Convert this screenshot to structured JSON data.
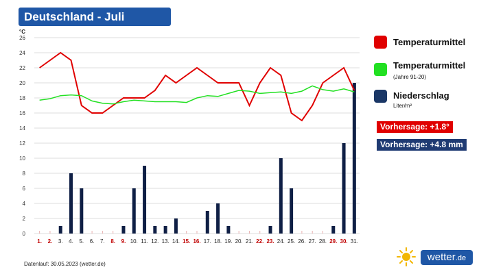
{
  "title": "Deutschland - Juli",
  "legend": [
    {
      "label": "Temperaturmittel",
      "sub": "",
      "color": "#e00000"
    },
    {
      "label": "Temperaturmittel",
      "sub": "(Jahre 91-20)",
      "color": "#22e022"
    },
    {
      "label": "Niederschlag",
      "sub": "Liter/m²",
      "color": "#1a3766"
    }
  ],
  "forecast": [
    {
      "text": "Vorhersage: +1.8°",
      "color": "#e00000"
    },
    {
      "text": "Vorhersage: +4.8 mm",
      "color": "#1f3b73"
    }
  ],
  "footer": "Datenlauf: 30.05.2023 (wetter.de)",
  "logo": {
    "name": "wetter",
    "tld": ".de"
  },
  "chart_data": {
    "type": "bar",
    "ylabel": "°C",
    "ylim": [
      0,
      26
    ],
    "yticks": [
      "0",
      "2",
      "4",
      "6",
      "8",
      "10",
      "12",
      "14",
      "16",
      "18",
      "20",
      "22",
      "24",
      "26"
    ],
    "grid": true,
    "categories": [
      "1.",
      "2.",
      "3.",
      "4.",
      "5.",
      "6.",
      "7.",
      "8.",
      "9.",
      "10.",
      "11.",
      "12.",
      "13.",
      "14.",
      "15.",
      "16.",
      "17.",
      "18.",
      "19.",
      "20.",
      "21.",
      "22.",
      "23.",
      "24.",
      "25.",
      "26.",
      "27.",
      "28.",
      "29.",
      "30.",
      "31."
    ],
    "weekend_days": [
      "1.",
      "2.",
      "8.",
      "9.",
      "15.",
      "16.",
      "22.",
      "23.",
      "29.",
      "30."
    ],
    "series": [
      {
        "name": "Niederschlag",
        "type": "bar",
        "color": "#0f1f45",
        "values": [
          0,
          0,
          1,
          8,
          6,
          0,
          0,
          0,
          1,
          6,
          9,
          1,
          1,
          2,
          0,
          0,
          3,
          4,
          1,
          0,
          0,
          0,
          1,
          10,
          6,
          0,
          0,
          0,
          1,
          12,
          20
        ]
      },
      {
        "name": "Temperaturmittel",
        "type": "line",
        "color": "#e00000",
        "values": [
          22,
          23,
          24,
          23,
          17,
          16,
          16,
          17,
          18,
          18,
          18,
          19,
          21,
          20,
          21,
          22,
          21,
          20,
          20,
          20,
          17,
          20,
          22,
          21,
          16,
          15,
          17,
          20,
          21,
          22,
          19
        ]
      },
      {
        "name": "Temperaturmittel (Jahre 91-20)",
        "type": "line",
        "color": "#22e022",
        "values": [
          17.7,
          17.9,
          18.3,
          18.4,
          18.3,
          17.6,
          17.3,
          17.2,
          17.5,
          17.7,
          17.6,
          17.5,
          17.5,
          17.5,
          17.4,
          18.0,
          18.3,
          18.2,
          18.6,
          19.0,
          18.9,
          18.6,
          18.7,
          18.8,
          18.6,
          18.9,
          19.6,
          19.1,
          18.9,
          19.2,
          18.8
        ]
      }
    ]
  }
}
